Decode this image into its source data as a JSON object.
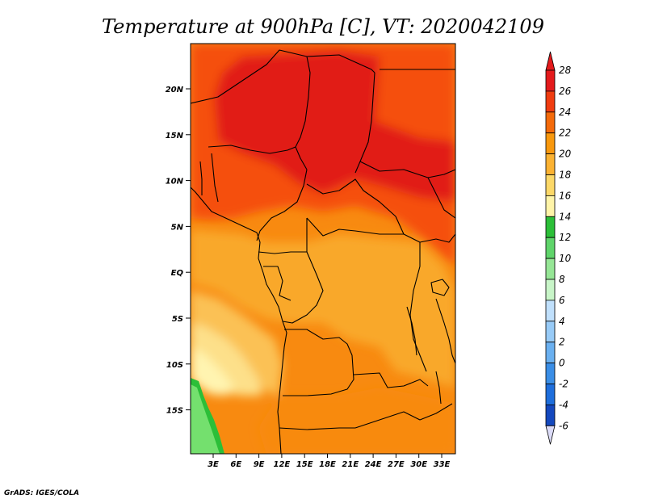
{
  "title": "Temperature at 900hPa [C], VT: 2020042109",
  "credit": "GrADS: IGES/COLA",
  "lat_ticks": [
    "20N",
    "15N",
    "10N",
    "5N",
    "EQ",
    "5S",
    "10S",
    "15S"
  ],
  "lon_ticks": [
    "3E",
    "6E",
    "9E",
    "12E",
    "15E",
    "18E",
    "21E",
    "24E",
    "27E",
    "30E",
    "33E"
  ],
  "colorbar": {
    "labels": [
      "28",
      "26",
      "24",
      "22",
      "20",
      "18",
      "16",
      "14",
      "12",
      "10",
      "8",
      "6",
      "4",
      "2",
      "0",
      "-2",
      "-4",
      "-6"
    ],
    "colors": [
      "#e41a1c",
      "#f03c10",
      "#f46a0a",
      "#f8980e",
      "#fbb232",
      "#fcd868",
      "#fff4a8",
      "#2cbf38",
      "#5fd46a",
      "#96e696",
      "#c8f5c8",
      "#c0e0fc",
      "#98cbf7",
      "#6ab0f0",
      "#3a8ee6",
      "#1e6edc",
      "#1448be",
      "#0a1a8c"
    ],
    "top_triangle_color": "#e41a1c",
    "bottom_triangle_color": "#dcdcf8"
  },
  "map_colors": {
    "hot": "#e11f12",
    "very_warm": "#f5500c",
    "warm": "#f88a10",
    "mild": "#f9a82a",
    "cool": "#fbc154",
    "cooler": "#fde08a",
    "pale": "#fff4b0",
    "green_dark": "#2cbf38",
    "green_light": "#74e06e"
  }
}
